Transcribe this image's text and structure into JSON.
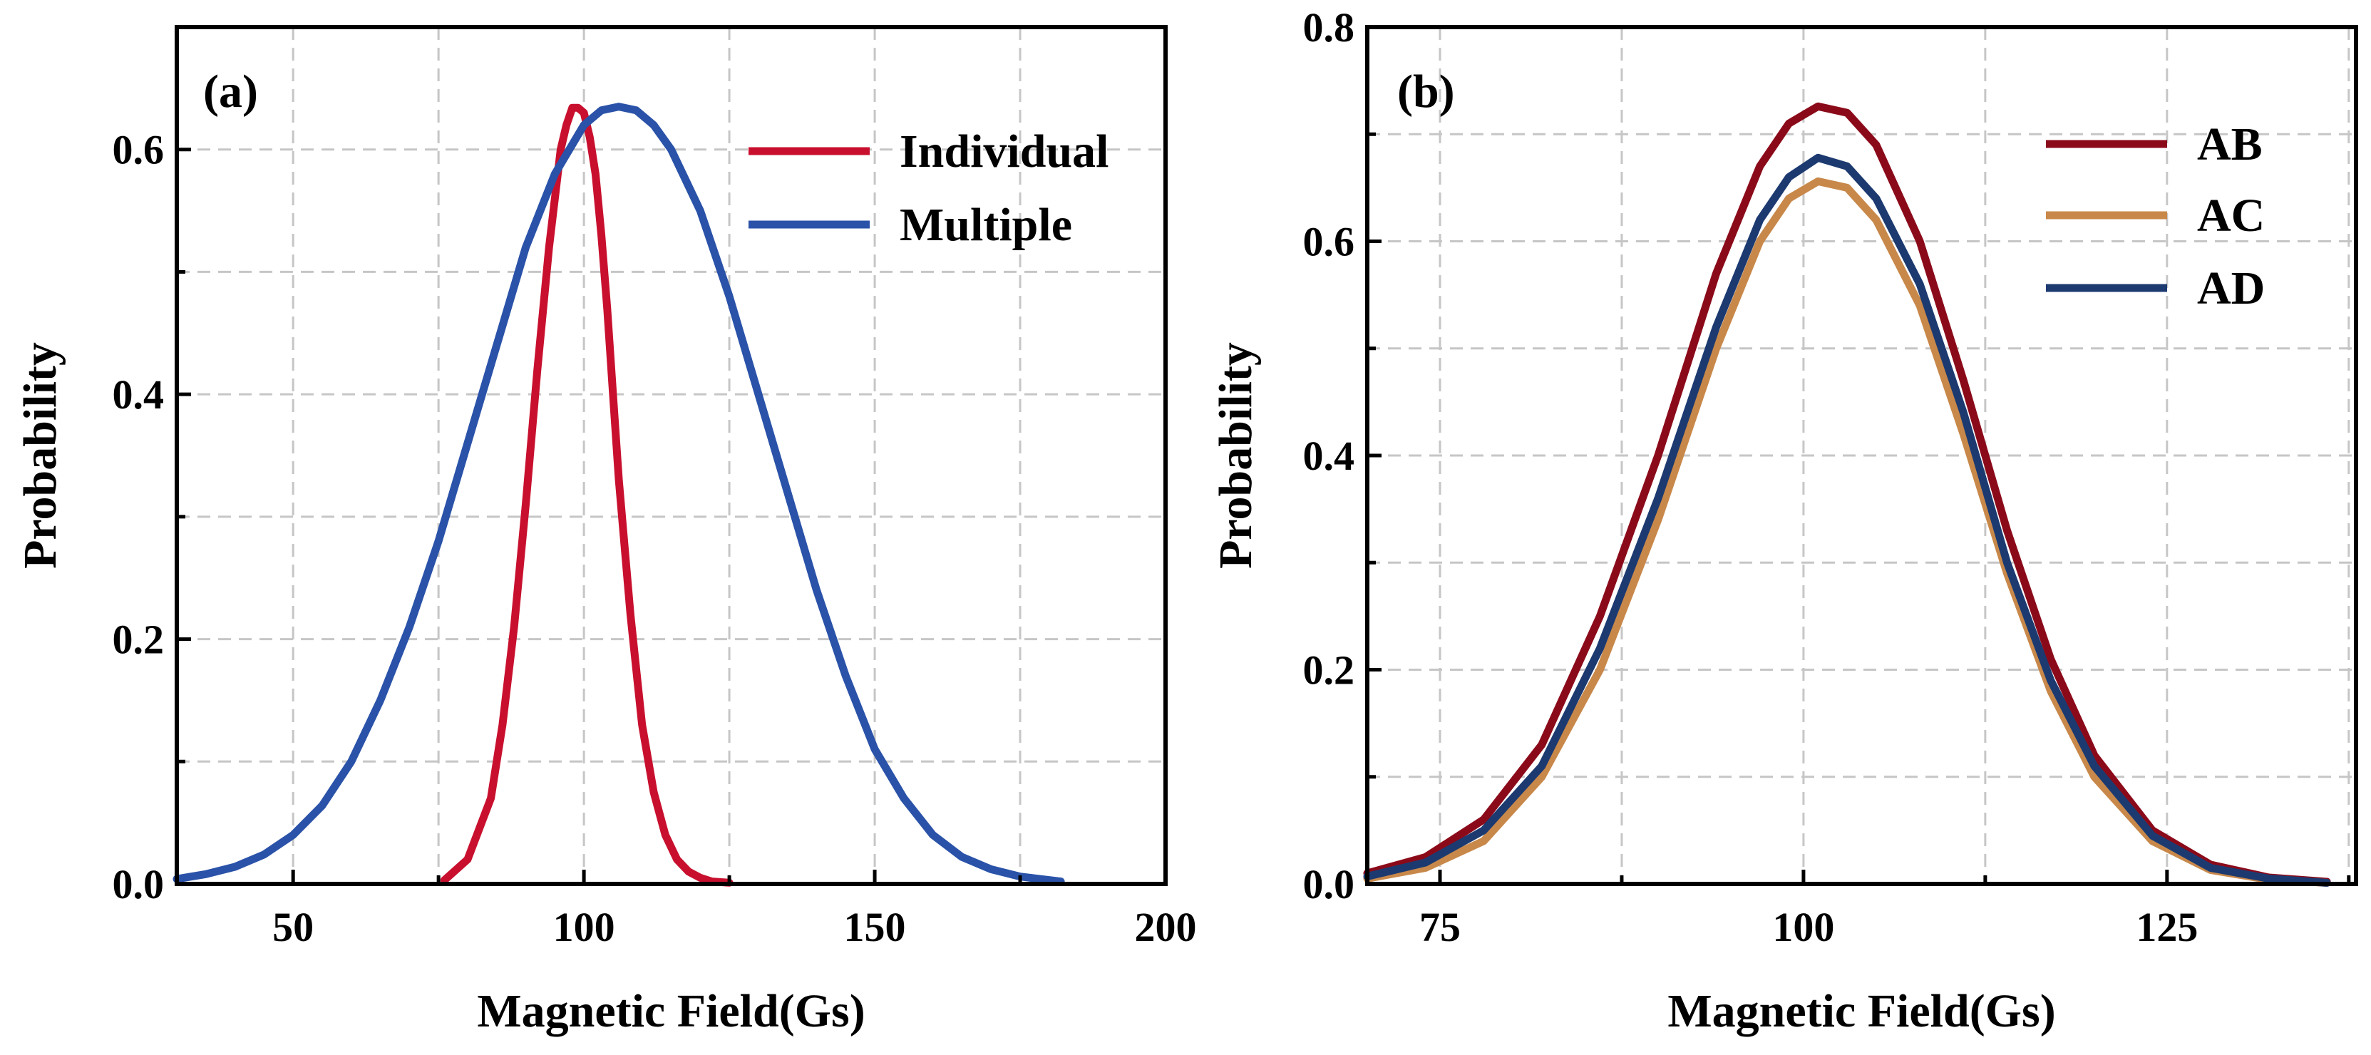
{
  "chart_data": [
    {
      "type": "line",
      "panel_label": "(a)",
      "xlabel": "Magnetic Field(Gs)",
      "ylabel": "Probability",
      "xlim": [
        30,
        200
      ],
      "ylim": [
        0,
        0.7
      ],
      "x_ticks": [
        50,
        100,
        150,
        200
      ],
      "x_tick_labels": [
        "50",
        "100",
        "150",
        "200"
      ],
      "y_ticks": [
        0.0,
        0.2,
        0.4,
        0.6
      ],
      "y_tick_labels": [
        "0.0",
        "0.2",
        "0.4",
        "0.6"
      ],
      "x_minor_ticks": [
        75,
        125,
        175
      ],
      "y_minor_ticks": [
        0.1,
        0.3,
        0.5
      ],
      "grid": true,
      "legend_position": "top-right",
      "series": [
        {
          "name": "Individual",
          "color": "#c8102e",
          "x": [
            76,
            80,
            84,
            86,
            88,
            90,
            92,
            94,
            96,
            97,
            98,
            99,
            100,
            101,
            102,
            103,
            104,
            105,
            106,
            108,
            110,
            112,
            114,
            116,
            118,
            120,
            122,
            125
          ],
          "y": [
            0.003,
            0.02,
            0.07,
            0.13,
            0.21,
            0.31,
            0.42,
            0.52,
            0.6,
            0.62,
            0.634,
            0.634,
            0.63,
            0.61,
            0.58,
            0.53,
            0.47,
            0.4,
            0.33,
            0.22,
            0.13,
            0.075,
            0.04,
            0.02,
            0.01,
            0.005,
            0.002,
            0.001
          ]
        },
        {
          "name": "Multiple",
          "color": "#2a52a8",
          "x": [
            30,
            35,
            40,
            45,
            50,
            55,
            60,
            65,
            70,
            75,
            80,
            85,
            90,
            95,
            100,
            103,
            106,
            109,
            112,
            115,
            120,
            125,
            130,
            135,
            140,
            145,
            150,
            155,
            160,
            165,
            170,
            175,
            182
          ],
          "y": [
            0.004,
            0.008,
            0.014,
            0.024,
            0.04,
            0.064,
            0.1,
            0.15,
            0.21,
            0.28,
            0.36,
            0.44,
            0.52,
            0.58,
            0.62,
            0.632,
            0.635,
            0.632,
            0.62,
            0.6,
            0.55,
            0.48,
            0.4,
            0.32,
            0.24,
            0.17,
            0.11,
            0.07,
            0.04,
            0.022,
            0.012,
            0.006,
            0.002
          ]
        }
      ]
    },
    {
      "type": "line",
      "panel_label": "(b)",
      "xlabel": "Magnetic Field(Gs)",
      "ylabel": "Probability",
      "xlim": [
        70,
        138
      ],
      "ylim": [
        0,
        0.8
      ],
      "x_ticks": [
        75,
        100,
        125
      ],
      "x_tick_labels": [
        "75",
        "100",
        "125"
      ],
      "y_ticks": [
        0.0,
        0.2,
        0.4,
        0.6,
        0.8
      ],
      "y_tick_labels": [
        "0.0",
        "0.2",
        "0.4",
        "0.6",
        "0.8"
      ],
      "x_minor_ticks": [
        87.5,
        112.5,
        137.5
      ],
      "y_minor_ticks": [
        0.1,
        0.3,
        0.5,
        0.7
      ],
      "grid": true,
      "legend_position": "top-right",
      "series": [
        {
          "name": "AB",
          "color": "#8b0a1a",
          "x": [
            70,
            74,
            78,
            82,
            86,
            90,
            94,
            97,
            99,
            101,
            103,
            105,
            108,
            111,
            114,
            117,
            120,
            124,
            128,
            132,
            136
          ],
          "y": [
            0.01,
            0.025,
            0.06,
            0.13,
            0.25,
            0.4,
            0.57,
            0.67,
            0.71,
            0.726,
            0.72,
            0.69,
            0.6,
            0.47,
            0.33,
            0.21,
            0.12,
            0.05,
            0.018,
            0.006,
            0.002
          ]
        },
        {
          "name": "AC",
          "color": "#c8884a",
          "x": [
            70,
            74,
            78,
            82,
            86,
            90,
            94,
            97,
            99,
            101,
            103,
            105,
            108,
            111,
            114,
            117,
            120,
            124,
            128,
            132,
            136
          ],
          "y": [
            0.005,
            0.015,
            0.04,
            0.1,
            0.2,
            0.34,
            0.5,
            0.6,
            0.64,
            0.656,
            0.65,
            0.62,
            0.54,
            0.42,
            0.29,
            0.18,
            0.1,
            0.04,
            0.013,
            0.004,
            0.001
          ]
        },
        {
          "name": "AD",
          "color": "#1c3a70",
          "x": [
            70,
            74,
            78,
            82,
            86,
            90,
            94,
            97,
            99,
            101,
            103,
            105,
            108,
            111,
            114,
            117,
            120,
            124,
            128,
            132,
            136
          ],
          "y": [
            0.007,
            0.02,
            0.05,
            0.11,
            0.22,
            0.36,
            0.52,
            0.62,
            0.66,
            0.678,
            0.67,
            0.64,
            0.56,
            0.44,
            0.3,
            0.19,
            0.11,
            0.045,
            0.015,
            0.005,
            0.001
          ]
        }
      ]
    }
  ]
}
